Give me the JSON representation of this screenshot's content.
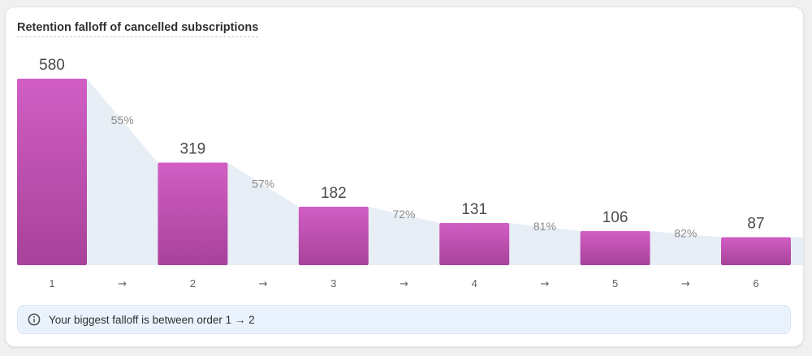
{
  "card": {
    "title": "Retention falloff of cancelled subscriptions"
  },
  "banner": {
    "icon": "info-circle-icon",
    "text": "Your biggest falloff is between order 1 → 2"
  },
  "colors": {
    "bar_top": "#d15ec4",
    "bar_bottom": "#a8429a",
    "area_fill": "#e8eef6",
    "value_label": "#4a4a4a",
    "percent_label": "#8a8a8a",
    "axis_label": "#616161"
  },
  "chart_data": {
    "type": "bar",
    "title": "Retention falloff of cancelled subscriptions",
    "categories": [
      "1",
      "2",
      "3",
      "4",
      "5",
      "6"
    ],
    "values": [
      580,
      319,
      182,
      131,
      106,
      87
    ],
    "step_percentages": [
      "55%",
      "57%",
      "72%",
      "81%",
      "82%"
    ],
    "step_separator": "→",
    "ylim": [
      0,
      580
    ],
    "grid": false,
    "legend": "none"
  }
}
